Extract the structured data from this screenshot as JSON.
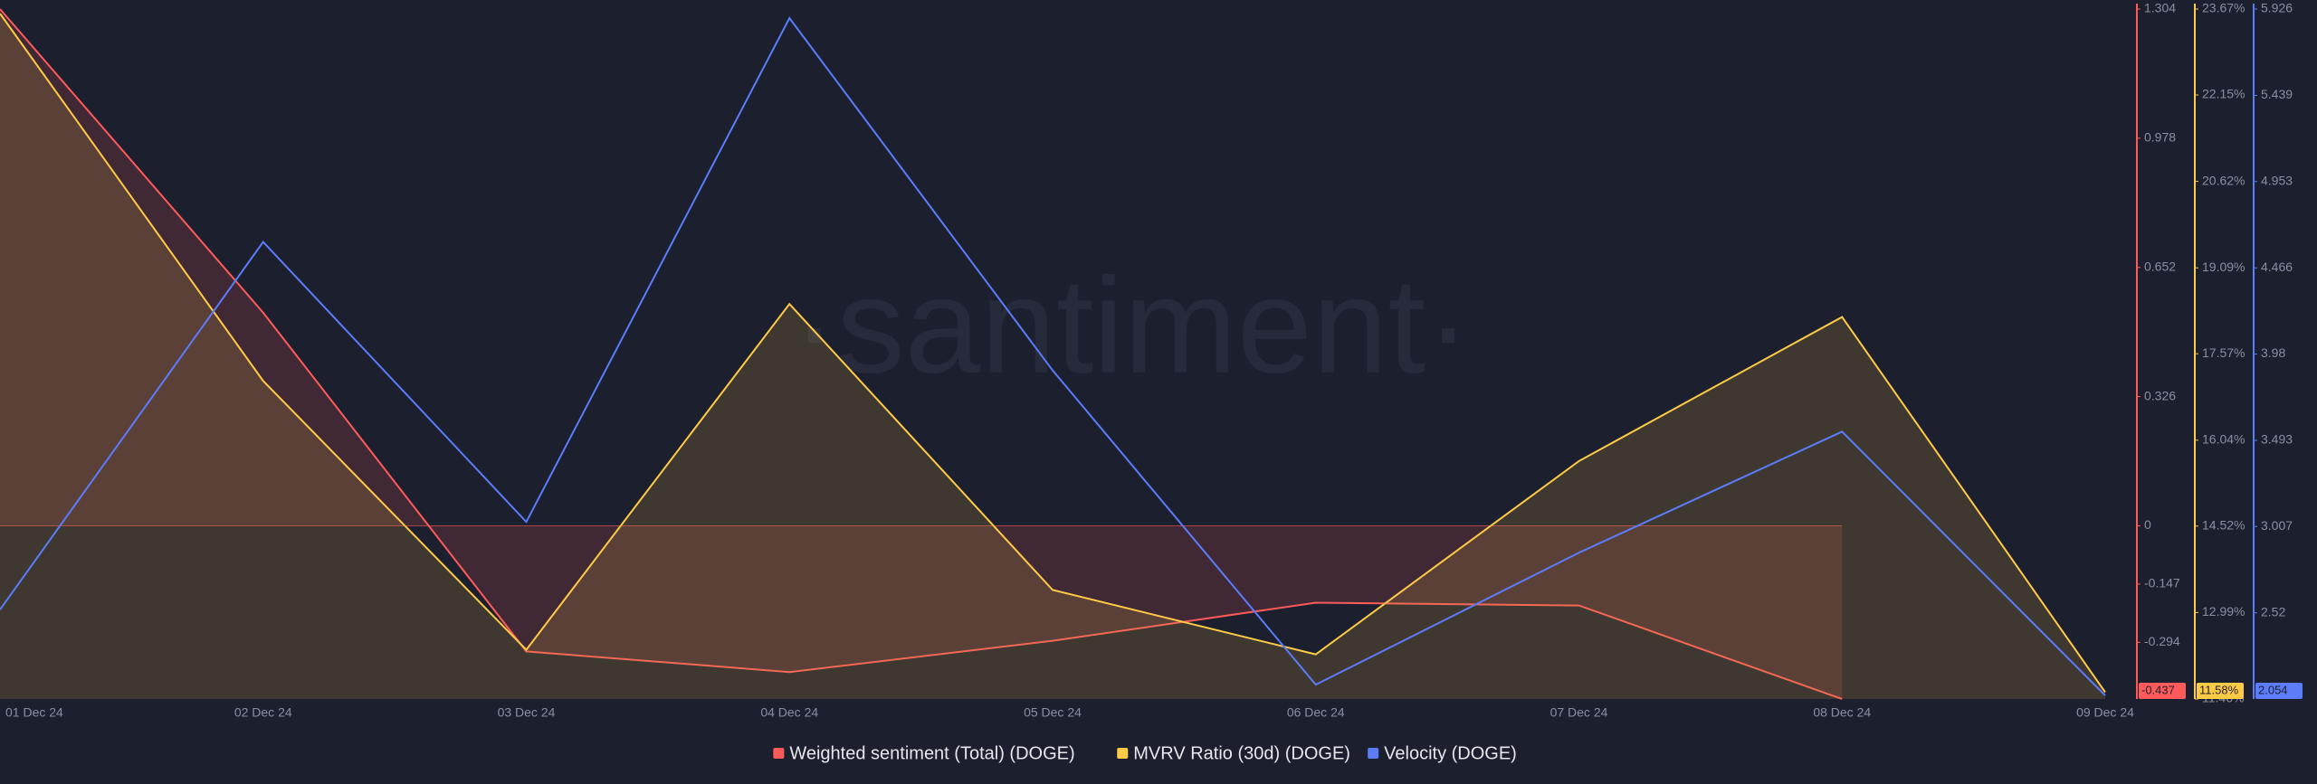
{
  "chart_data": {
    "type": "line",
    "watermark": "·santiment·",
    "x": [
      "01 Dec 24",
      "02 Dec 24",
      "03 Dec 24",
      "04 Dec 24",
      "05 Dec 24",
      "06 Dec 24",
      "07 Dec 24",
      "08 Dec 24",
      "09 Dec 24"
    ],
    "series": [
      {
        "name": "Weighted sentiment (Total) (DOGE)",
        "color": "#ff5b5b",
        "axis": "y",
        "values": [
          1.304,
          0.538,
          -0.317,
          -0.369,
          -0.29,
          -0.194,
          -0.201,
          -0.437,
          null
        ],
        "value_labels": [
          null,
          null,
          null,
          null,
          null,
          null,
          null,
          "-0.437",
          null
        ]
      },
      {
        "name": "MVRV Ratio (30d) (DOGE)",
        "color": "#ffcb47",
        "axis": "y2",
        "values": [
          23.59,
          17.09,
          12.33,
          18.45,
          13.39,
          12.25,
          15.67,
          18.22,
          11.58
        ],
        "value_labels": [
          null,
          null,
          null,
          null,
          null,
          null,
          null,
          null,
          "11.58%"
        ]
      },
      {
        "name": "Velocity (DOGE)",
        "color": "#5c7cfa",
        "axis": "y3",
        "values": [
          2.538,
          4.612,
          3.033,
          5.875,
          3.888,
          2.115,
          2.859,
          3.542,
          2.054
        ],
        "value_labels": [
          null,
          null,
          null,
          null,
          null,
          null,
          null,
          null,
          "2.054"
        ]
      }
    ],
    "ylim": [
      -0.437,
      1.304
    ],
    "yticks": [
      1.304,
      0.978,
      0.652,
      0.326,
      0,
      -0.147,
      -0.294
    ],
    "y2lim": [
      11.46,
      23.67
    ],
    "y2ticks": [
      {
        "value": 23.67,
        "label": "23.67%"
      },
      {
        "value": 22.15,
        "label": "22.15%"
      },
      {
        "value": 20.62,
        "label": "20.62%"
      },
      {
        "value": 19.09,
        "label": "19.09%"
      },
      {
        "value": 17.57,
        "label": "17.57%"
      },
      {
        "value": 16.04,
        "label": "16.04%"
      },
      {
        "value": 14.52,
        "label": "14.52%"
      },
      {
        "value": 12.99,
        "label": "12.99%"
      },
      {
        "value": 11.46,
        "label": "11.46%"
      }
    ],
    "y3lim": [
      2.034,
      5.926
    ],
    "y3ticks": [
      5.926,
      5.439,
      4.953,
      4.466,
      3.98,
      3.493,
      3.007,
      2.52
    ]
  }
}
